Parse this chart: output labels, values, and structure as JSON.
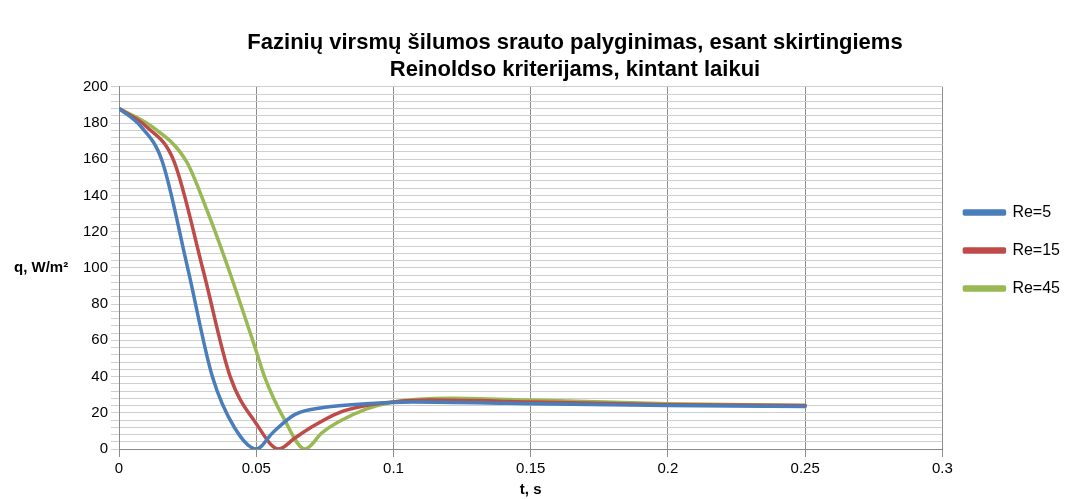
{
  "chart_data": {
    "type": "line",
    "title": "Fazinių virsmų šilumos srauto palyginimas, esant skirtingiems Reinoldso kriterijams, kintant laikui",
    "xlabel": "t, s",
    "ylabel": "q, W/m²",
    "xlim": [
      0,
      0.3
    ],
    "xticks": [
      0,
      0.05,
      0.1,
      0.15,
      0.2,
      0.25,
      0.3
    ],
    "ylim": [
      0,
      200
    ],
    "yticks": [
      0,
      {
        "value": 4,
        "label": null
      },
      {
        "value": 8,
        "label": null
      },
      {
        "value": 12,
        "label": null
      },
      {
        "value": 16,
        "label": null
      },
      20,
      {
        "value": 24,
        "label": null
      },
      {
        "value": 28,
        "label": null
      },
      {
        "value": 32,
        "label": null
      },
      {
        "value": 36,
        "label": null
      },
      40,
      {
        "value": 44,
        "label": null
      },
      {
        "value": 48,
        "label": null
      },
      {
        "value": 52,
        "label": null
      },
      {
        "value": 56,
        "label": null
      },
      60,
      {
        "value": 64,
        "label": null
      },
      {
        "value": 68,
        "label": null
      },
      {
        "value": 72,
        "label": null
      },
      {
        "value": 76,
        "label": null
      },
      80,
      {
        "value": 84,
        "label": null
      },
      {
        "value": 88,
        "label": null
      },
      {
        "value": 92,
        "label": null
      },
      {
        "value": 96,
        "label": null
      },
      100,
      {
        "value": 104,
        "label": null
      },
      {
        "value": 108,
        "label": null
      },
      {
        "value": 112,
        "label": null
      },
      {
        "value": 116,
        "label": null
      },
      120,
      {
        "value": 124,
        "label": null
      },
      {
        "value": 128,
        "label": null
      },
      {
        "value": 132,
        "label": null
      },
      {
        "value": 136,
        "label": null
      },
      140,
      {
        "value": 144,
        "label": null
      },
      {
        "value": 148,
        "label": null
      },
      {
        "value": 152,
        "label": null
      },
      {
        "value": 156,
        "label": null
      },
      160,
      {
        "value": 164,
        "label": null
      },
      {
        "value": 168,
        "label": null
      },
      {
        "value": 172,
        "label": null
      },
      {
        "value": 176,
        "label": null
      },
      180,
      {
        "value": 184,
        "label": null
      },
      {
        "value": 188,
        "label": null
      },
      {
        "value": 192,
        "label": null
      },
      {
        "value": 196,
        "label": null
      },
      200
    ],
    "grid": true,
    "legend": "right",
    "marker": "none",
    "line_style": "solid",
    "series": [
      {
        "name": "Re=5",
        "color": "#4a7ebb",
        "x": [
          0,
          0.008,
          0.0157,
          0.025,
          0.034,
          0.042,
          0.05,
          0.056,
          0.064,
          0.075,
          0.09,
          0.107,
          0.15,
          0.2,
          0.25
        ],
        "values": [
          188,
          178,
          159,
          100,
          40,
          12,
          0,
          9,
          19,
          23,
          25,
          26,
          25,
          24,
          23.5
        ]
      },
      {
        "name": "Re=15",
        "color": "#be4b48",
        "x": [
          0,
          0.01,
          0.02,
          0.0306,
          0.0405,
          0.05,
          0.0582,
          0.064,
          0.07,
          0.08,
          0.09,
          0.1,
          0.113,
          0.15,
          0.2,
          0.25
        ],
        "values": [
          188,
          178,
          159,
          99,
          40,
          14,
          0,
          6,
          12,
          20,
          24,
          26,
          27,
          26,
          24.5,
          24
        ]
      },
      {
        "name": "Re=45",
        "color": "#98b954",
        "x": [
          0,
          0.012,
          0.0245,
          0.032,
          0.04,
          0.05,
          0.053,
          0.06,
          0.0678,
          0.074,
          0.08,
          0.09,
          0.1,
          0.121,
          0.15,
          0.2,
          0.25
        ],
        "values": [
          188,
          178,
          159,
          132,
          99,
          54,
          40,
          17,
          0,
          9,
          15,
          22,
          26,
          28,
          27,
          25,
          24
        ]
      }
    ]
  }
}
